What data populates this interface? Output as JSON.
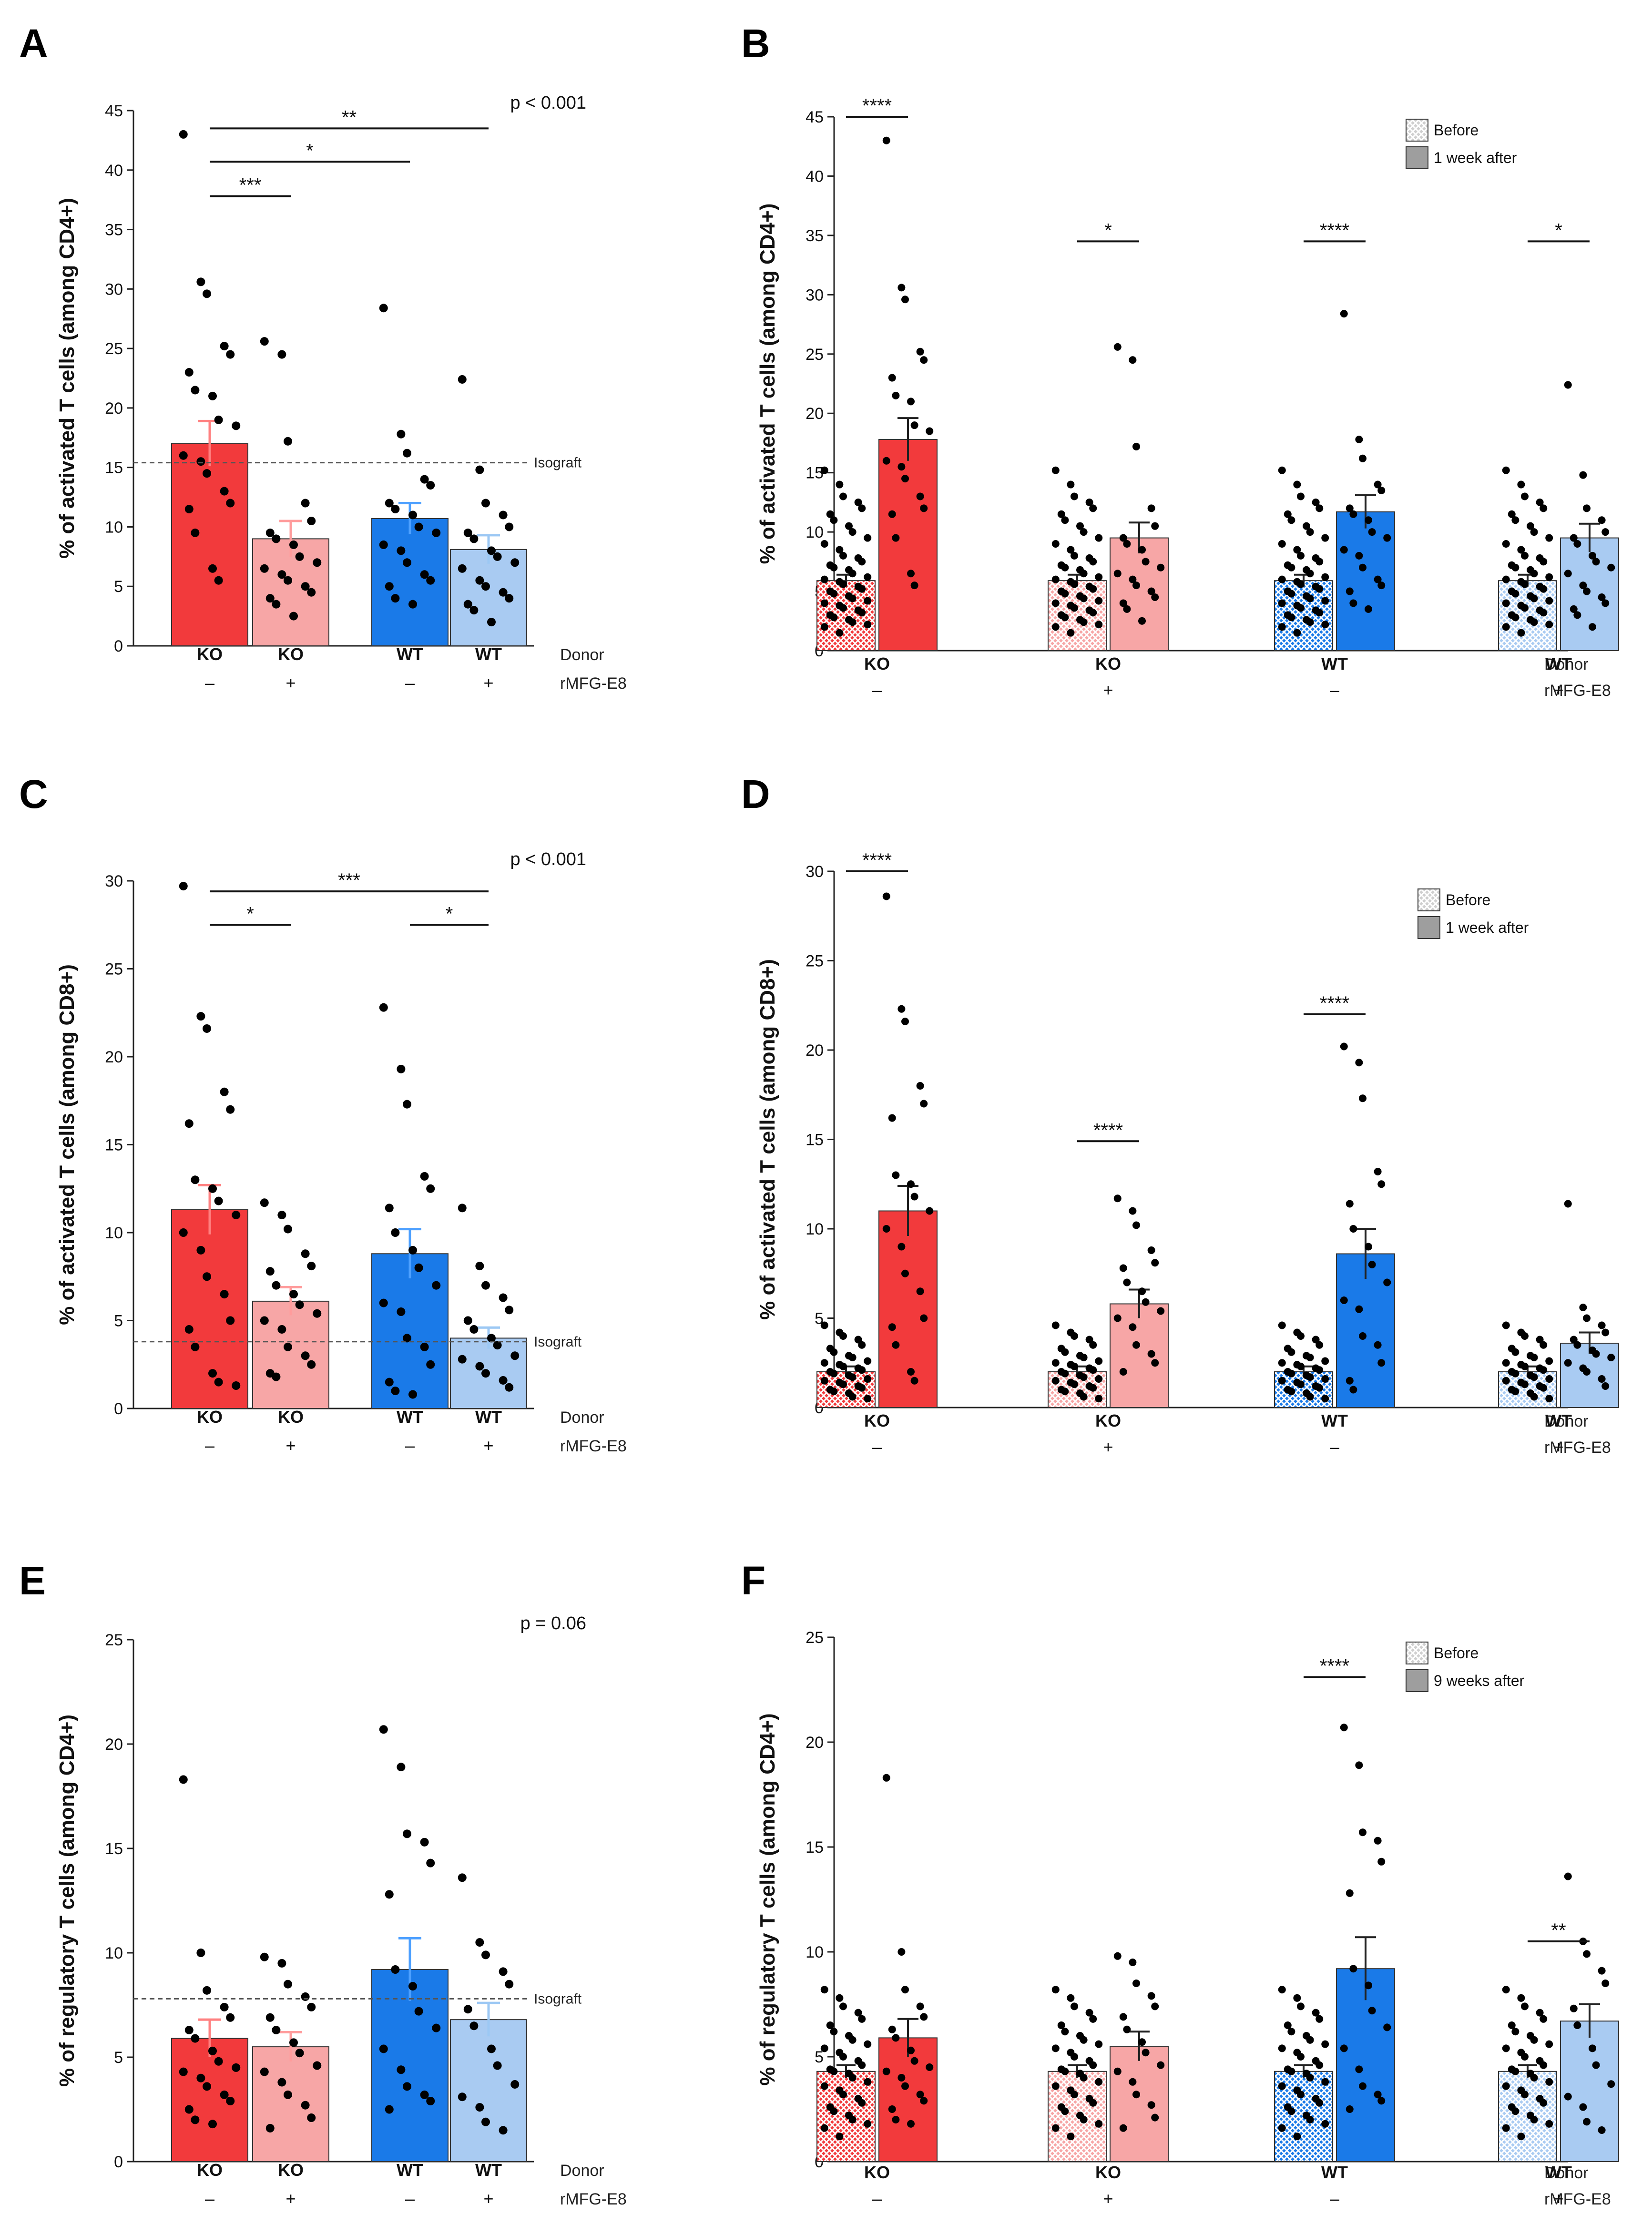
{
  "colors": {
    "ko_minus": "#f23a3c",
    "ko_plus": "#f7a6a6",
    "wt_minus": "#1a7ae8",
    "wt_plus": "#a9cbf2",
    "ko_minus_err": "#ff8080",
    "ko_plus_err": "#ff9c9c",
    "wt_minus_err": "#4da0ff",
    "wt_plus_err": "#9cc8f4",
    "point": "#000000"
  },
  "row_labels": {
    "donor": "Donor",
    "rmfg": "rMFG-E8"
  },
  "chart_data": [
    {
      "id": "A",
      "letter": "A",
      "type": "bar",
      "ylabel": "% of activated T cells (among CD4+)",
      "ylim": [
        0,
        45
      ],
      "ticks": [
        0,
        5,
        10,
        15,
        20,
        25,
        30,
        35,
        40,
        45
      ],
      "ptext": "p < 0.001",
      "isograft": {
        "value": 15.4,
        "label": "Isograft"
      },
      "groups": [
        {
          "donor": "KO",
          "sign": "–",
          "mean": 17.0,
          "sem": 1.9,
          "style": "ko_minus",
          "points": [
            43.0,
            30.6,
            29.6,
            25.2,
            24.5,
            23.0,
            21.5,
            21.0,
            19.0,
            18.5,
            16.0,
            15.5,
            14.5,
            13.0,
            12.0,
            11.5,
            9.5,
            6.5,
            5.5
          ]
        },
        {
          "donor": "KO",
          "sign": "+",
          "mean": 9.0,
          "sem": 1.5,
          "style": "ko_plus",
          "points": [
            25.6,
            24.5,
            17.2,
            12.0,
            10.5,
            9.5,
            9.0,
            8.5,
            7.5,
            7.0,
            6.5,
            6.0,
            5.5,
            5.0,
            4.5,
            4.0,
            3.5,
            2.5
          ]
        },
        {
          "donor": "WT",
          "sign": "–",
          "mean": 10.7,
          "sem": 1.3,
          "style": "wt_minus",
          "points": [
            28.4,
            17.8,
            16.2,
            14.0,
            13.5,
            12.0,
            11.5,
            11.0,
            10.0,
            9.5,
            8.5,
            8.0,
            7.0,
            6.0,
            5.5,
            5.0,
            4.0,
            3.5
          ]
        },
        {
          "donor": "WT",
          "sign": "+",
          "mean": 8.1,
          "sem": 1.2,
          "style": "wt_plus",
          "points": [
            22.4,
            14.8,
            12.0,
            11.0,
            10.0,
            9.5,
            9.0,
            8.0,
            7.5,
            7.0,
            6.5,
            5.5,
            5.0,
            4.5,
            4.0,
            3.5,
            3.0,
            2.0
          ]
        }
      ],
      "sig": [
        {
          "from": 0,
          "to": 1,
          "y": 37.8,
          "label": "***"
        },
        {
          "from": 0,
          "to": 2,
          "y": 40.7,
          "label": "*"
        },
        {
          "from": 0,
          "to": 3,
          "y": 43.5,
          "label": "**"
        }
      ]
    },
    {
      "id": "B",
      "letter": "B",
      "type": "bar",
      "ylabel": "% of activated T cells (among CD4+)",
      "ylim": [
        0,
        45
      ],
      "ticks": [
        0,
        5,
        10,
        15,
        20,
        25,
        30,
        35,
        40,
        45
      ],
      "legend": [
        "Before",
        "1 week after"
      ],
      "groups": [
        {
          "donor": "KO",
          "sign": "–",
          "before": 5.9,
          "before_sem": 0.5,
          "after": 17.8,
          "after_sem": 1.8,
          "style": "ko_minus",
          "after_points": [
            43.0,
            30.6,
            29.6,
            25.2,
            24.5,
            23.0,
            21.5,
            21.0,
            19.0,
            18.5,
            16.0,
            15.5,
            14.5,
            13.0,
            12.0,
            11.5,
            9.5,
            6.5,
            5.5
          ]
        },
        {
          "donor": "KO",
          "sign": "+",
          "before": 5.9,
          "before_sem": 0.5,
          "after": 9.5,
          "after_sem": 1.3,
          "style": "ko_plus",
          "after_points": [
            25.6,
            24.5,
            17.2,
            12.0,
            10.5,
            9.5,
            9.0,
            8.5,
            7.5,
            7.0,
            6.5,
            6.0,
            5.5,
            5.0,
            4.5,
            4.0,
            3.5,
            2.5
          ]
        },
        {
          "donor": "WT",
          "sign": "–",
          "before": 5.9,
          "before_sem": 0.5,
          "after": 11.7,
          "after_sem": 1.4,
          "style": "wt_minus",
          "after_points": [
            28.4,
            17.8,
            16.2,
            14.0,
            13.5,
            12.0,
            11.5,
            11.0,
            10.0,
            9.5,
            8.5,
            8.0,
            7.0,
            6.0,
            5.5,
            5.0,
            4.0,
            3.5
          ]
        },
        {
          "donor": "WT",
          "sign": "+",
          "before": 5.9,
          "before_sem": 0.5,
          "after": 9.5,
          "after_sem": 1.2,
          "style": "wt_plus",
          "after_points": [
            22.4,
            14.8,
            12.0,
            11.0,
            10.0,
            9.5,
            9.0,
            8.0,
            7.5,
            7.0,
            6.5,
            5.5,
            5.0,
            4.5,
            4.0,
            3.5,
            3.0,
            2.0
          ]
        }
      ],
      "before_points": [
        15.2,
        14.0,
        13.0,
        12.5,
        12.0,
        11.5,
        11.0,
        10.5,
        10.0,
        9.5,
        9.0,
        8.5,
        8.0,
        7.8,
        7.5,
        7.2,
        7.0,
        6.8,
        6.5,
        6.2,
        6.0,
        5.8,
        5.6,
        5.4,
        5.2,
        5.0,
        4.8,
        4.6,
        4.4,
        4.2,
        4.0,
        3.8,
        3.6,
        3.4,
        3.2,
        3.0,
        2.8,
        2.6,
        2.4,
        2.2,
        2.0,
        1.5
      ],
      "sig": [
        {
          "group": 0,
          "y": 45.0,
          "label": "****"
        },
        {
          "group": 1,
          "y": 34.5,
          "label": "*"
        },
        {
          "group": 2,
          "y": 34.5,
          "label": "****"
        },
        {
          "group": 3,
          "y": 34.5,
          "label": "*"
        }
      ]
    },
    {
      "id": "C",
      "letter": "C",
      "type": "bar",
      "ylabel": "% of activated T cells (among CD8+)",
      "ylim": [
        0,
        30
      ],
      "ticks": [
        0,
        5,
        10,
        15,
        20,
        25,
        30
      ],
      "ptext": "p < 0.001",
      "isograft": {
        "value": 3.8,
        "label": "Isograft"
      },
      "groups": [
        {
          "donor": "KO",
          "sign": "–",
          "mean": 11.3,
          "sem": 1.4,
          "style": "ko_minus",
          "points": [
            29.7,
            22.3,
            21.6,
            18.0,
            17.0,
            16.2,
            13.0,
            12.5,
            11.8,
            11.0,
            10.0,
            9.0,
            7.5,
            6.5,
            5.0,
            4.5,
            3.5,
            2.0,
            1.5,
            1.3
          ]
        },
        {
          "donor": "KO",
          "sign": "+",
          "mean": 6.1,
          "sem": 0.8,
          "style": "ko_plus",
          "points": [
            11.7,
            11.0,
            10.2,
            8.8,
            8.1,
            7.8,
            7.0,
            6.5,
            5.9,
            5.4,
            5.0,
            4.5,
            3.5,
            3.0,
            2.5,
            2.0,
            1.8
          ]
        },
        {
          "donor": "WT",
          "sign": "–",
          "mean": 8.8,
          "sem": 1.4,
          "style": "wt_minus",
          "points": [
            22.8,
            19.3,
            17.3,
            13.2,
            12.5,
            11.4,
            10.0,
            9.0,
            8.0,
            7.0,
            6.0,
            5.5,
            4.0,
            3.5,
            2.5,
            1.5,
            1.0,
            0.8
          ]
        },
        {
          "donor": "WT",
          "sign": "+",
          "mean": 4.0,
          "sem": 0.6,
          "style": "wt_plus",
          "points": [
            11.4,
            8.1,
            7.0,
            6.3,
            5.6,
            5.0,
            4.5,
            4.0,
            3.6,
            3.0,
            2.8,
            2.4,
            2.0,
            1.6,
            1.2
          ]
        }
      ],
      "sig": [
        {
          "from": 0,
          "to": 1,
          "y": 27.5,
          "label": "*"
        },
        {
          "from": 0,
          "to": 3,
          "y": 29.4,
          "label": "***"
        },
        {
          "from": 2,
          "to": 3,
          "y": 27.5,
          "label": "*"
        }
      ]
    },
    {
      "id": "D",
      "letter": "D",
      "type": "bar",
      "ylabel": "% of activated T cells (among CD8+)",
      "ylim": [
        0,
        30
      ],
      "ticks": [
        0,
        5,
        10,
        15,
        20,
        25,
        30
      ],
      "legend": [
        "Before",
        "1 week after"
      ],
      "groups": [
        {
          "donor": "KO",
          "sign": "–",
          "before": 2.0,
          "before_sem": 0.3,
          "after": 11.0,
          "after_sem": 1.4,
          "style": "ko_minus",
          "after_points": [
            28.6,
            22.3,
            21.6,
            18.0,
            17.0,
            16.2,
            13.0,
            12.5,
            11.8,
            11.0,
            10.0,
            9.0,
            7.5,
            6.5,
            5.0,
            4.5,
            3.5,
            2.0,
            1.5
          ]
        },
        {
          "donor": "KO",
          "sign": "+",
          "before": 2.0,
          "before_sem": 0.3,
          "after": 5.8,
          "after_sem": 0.8,
          "style": "ko_plus",
          "after_points": [
            11.7,
            11.0,
            10.2,
            8.8,
            8.1,
            7.8,
            7.0,
            6.5,
            5.9,
            5.4,
            5.0,
            4.5,
            3.5,
            3.0,
            2.5,
            2.0
          ]
        },
        {
          "donor": "WT",
          "sign": "–",
          "before": 2.0,
          "before_sem": 0.3,
          "after": 8.6,
          "after_sem": 1.4,
          "style": "wt_minus",
          "after_points": [
            20.2,
            19.3,
            17.3,
            13.2,
            12.5,
            11.4,
            10.0,
            9.0,
            8.0,
            7.0,
            6.0,
            5.5,
            4.0,
            3.5,
            2.5,
            1.5,
            1.0
          ]
        },
        {
          "donor": "WT",
          "sign": "+",
          "before": 2.0,
          "before_sem": 0.3,
          "after": 3.6,
          "after_sem": 0.6,
          "style": "wt_plus",
          "after_points": [
            11.4,
            5.6,
            5.0,
            4.6,
            4.2,
            3.8,
            3.5,
            3.2,
            3.0,
            2.8,
            2.5,
            2.2,
            2.0,
            1.6,
            1.2
          ]
        }
      ],
      "before_points": [
        4.6,
        4.2,
        4.0,
        3.8,
        3.5,
        3.3,
        3.1,
        2.9,
        2.8,
        2.6,
        2.5,
        2.4,
        2.3,
        2.2,
        2.1,
        2.0,
        1.9,
        1.8,
        1.7,
        1.6,
        1.5,
        1.4,
        1.3,
        1.2,
        1.1,
        1.0,
        0.9,
        0.8,
        0.6,
        0.5
      ],
      "sig": [
        {
          "group": 0,
          "y": 30.0,
          "label": "****"
        },
        {
          "group": 1,
          "y": 14.9,
          "label": "****"
        },
        {
          "group": 2,
          "y": 22.0,
          "label": "****"
        }
      ]
    },
    {
      "id": "E",
      "letter": "E",
      "type": "bar",
      "ylabel": "% of regulatory T cells (among CD4+)",
      "ylim": [
        0,
        25
      ],
      "ticks": [
        0,
        5,
        10,
        15,
        20,
        25
      ],
      "ptext": "p = 0.06",
      "isograft": {
        "value": 7.8,
        "label": "Isograft"
      },
      "groups": [
        {
          "donor": "KO",
          "sign": "–",
          "mean": 5.9,
          "sem": 0.9,
          "style": "ko_minus",
          "points": [
            18.3,
            10.0,
            8.2,
            7.4,
            6.9,
            6.3,
            5.9,
            5.3,
            4.8,
            4.5,
            4.3,
            4.0,
            3.6,
            3.2,
            2.9,
            2.5,
            2.0,
            1.8
          ]
        },
        {
          "donor": "KO",
          "sign": "+",
          "mean": 5.5,
          "sem": 0.7,
          "style": "ko_plus",
          "points": [
            9.8,
            9.5,
            8.5,
            7.9,
            7.4,
            6.9,
            6.3,
            5.7,
            5.2,
            4.6,
            4.3,
            3.8,
            3.2,
            2.7,
            2.1,
            1.6
          ]
        },
        {
          "donor": "WT",
          "sign": "–",
          "mean": 9.2,
          "sem": 1.5,
          "style": "wt_minus",
          "points": [
            20.7,
            18.9,
            15.7,
            15.3,
            14.3,
            12.8,
            9.2,
            8.4,
            7.2,
            6.4,
            5.4,
            4.4,
            3.6,
            3.2,
            2.9,
            2.5
          ]
        },
        {
          "donor": "WT",
          "sign": "+",
          "mean": 6.8,
          "sem": 0.8,
          "style": "wt_plus",
          "points": [
            13.6,
            10.5,
            9.9,
            9.1,
            8.5,
            7.3,
            6.5,
            5.4,
            4.6,
            3.7,
            3.1,
            2.6,
            1.9,
            1.5
          ]
        }
      ]
    },
    {
      "id": "F",
      "letter": "F",
      "type": "bar",
      "ylabel": "% of regulatory T cells (among CD4+)",
      "ylim": [
        0,
        25
      ],
      "ticks": [
        0,
        5,
        10,
        15,
        20,
        25
      ],
      "legend": [
        "Before",
        "9 weeks after"
      ],
      "groups": [
        {
          "donor": "KO",
          "sign": "–",
          "before": 4.3,
          "before_sem": 0.3,
          "after": 5.9,
          "after_sem": 0.9,
          "style": "ko_minus",
          "after_points": [
            18.3,
            10.0,
            8.2,
            7.4,
            6.9,
            6.3,
            5.9,
            5.3,
            4.8,
            4.5,
            4.3,
            4.0,
            3.6,
            3.2,
            2.9,
            2.5,
            2.0,
            1.8
          ]
        },
        {
          "donor": "KO",
          "sign": "+",
          "before": 4.3,
          "before_sem": 0.3,
          "after": 5.5,
          "after_sem": 0.7,
          "style": "ko_plus",
          "after_points": [
            9.8,
            9.5,
            8.5,
            7.9,
            7.4,
            6.9,
            6.3,
            5.7,
            5.2,
            4.6,
            4.3,
            3.8,
            3.2,
            2.7,
            2.1,
            1.6
          ]
        },
        {
          "donor": "WT",
          "sign": "–",
          "before": 4.3,
          "before_sem": 0.3,
          "after": 9.2,
          "after_sem": 1.5,
          "style": "wt_minus",
          "after_points": [
            20.7,
            18.9,
            15.7,
            15.3,
            14.3,
            12.8,
            9.2,
            8.4,
            7.2,
            6.4,
            5.4,
            4.4,
            3.6,
            3.2,
            2.9,
            2.5
          ]
        },
        {
          "donor": "WT",
          "sign": "+",
          "before": 4.3,
          "before_sem": 0.3,
          "after": 6.7,
          "after_sem": 0.8,
          "style": "wt_plus",
          "after_points": [
            13.6,
            10.5,
            9.9,
            9.1,
            8.5,
            7.3,
            6.5,
            5.4,
            4.6,
            3.7,
            3.1,
            2.6,
            1.9,
            1.5
          ]
        }
      ],
      "before_points": [
        8.2,
        7.8,
        7.4,
        7.1,
        6.8,
        6.5,
        6.2,
        6.0,
        5.8,
        5.6,
        5.4,
        5.2,
        5.0,
        4.8,
        4.6,
        4.4,
        4.3,
        4.2,
        4.0,
        3.8,
        3.6,
        3.4,
        3.2,
        3.0,
        2.8,
        2.6,
        2.4,
        2.2,
        2.0,
        1.8,
        1.6,
        1.2
      ],
      "sig": [
        {
          "group": 2,
          "y": 23.1,
          "label": "****"
        },
        {
          "group": 3,
          "y": 10.5,
          "label": "**"
        }
      ]
    }
  ]
}
